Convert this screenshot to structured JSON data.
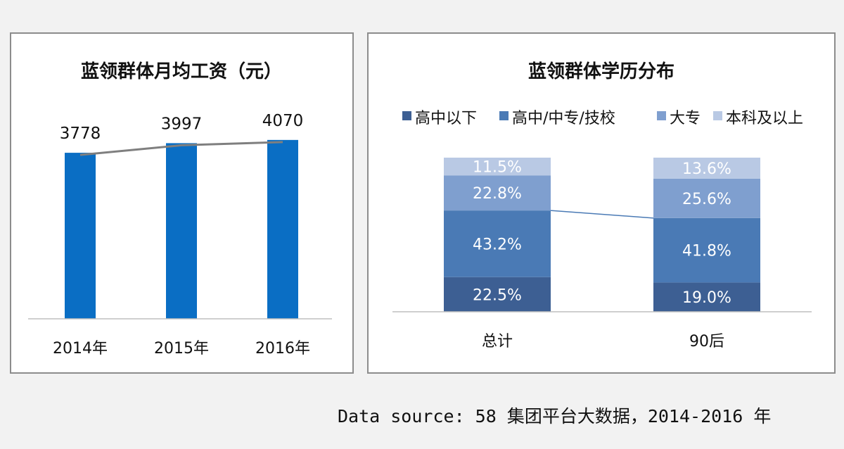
{
  "charts": {
    "left": {
      "title": "蓝领群体月均工资（元）",
      "chart_data": {
        "type": "bar",
        "title": "蓝领群体月均工资（元）",
        "categories": [
          "2014年",
          "2015年",
          "2016年"
        ],
        "values": [
          3778,
          3997,
          4070
        ],
        "trend_line": true,
        "ylim": [
          0,
          4500
        ],
        "grid": false,
        "colors": {
          "bar": "#0a6ec4",
          "trend": "#7f7f7f"
        }
      }
    },
    "right": {
      "title": "蓝领群体学历分布",
      "chart_data": {
        "type": "bar",
        "stacked": true,
        "title": "蓝领群体学历分布",
        "categories": [
          "总计",
          "90后"
        ],
        "series": [
          {
            "name": "高中以下",
            "values": [
              22.5,
              19.0
            ],
            "labels": [
              "22.5%",
              "19.0%"
            ],
            "color": "#3d5f93"
          },
          {
            "name": "高中/中专/技校",
            "values": [
              43.2,
              41.8
            ],
            "labels": [
              "43.2%",
              "41.8%"
            ],
            "color": "#4a7ab5"
          },
          {
            "name": "大专",
            "values": [
              22.8,
              25.6
            ],
            "labels": [
              "22.8%",
              "25.6%"
            ],
            "color": "#7f9fcf"
          },
          {
            "name": "本科及以上",
            "values": [
              11.5,
              13.6
            ],
            "labels": [
              "11.5%",
              "13.6%"
            ],
            "color": "#b9c9e4"
          }
        ],
        "ylim": [
          0,
          100
        ],
        "legend": "top",
        "grid": false
      }
    }
  },
  "source": "Data source: 58 集团平台大数据，2014-2016 年"
}
